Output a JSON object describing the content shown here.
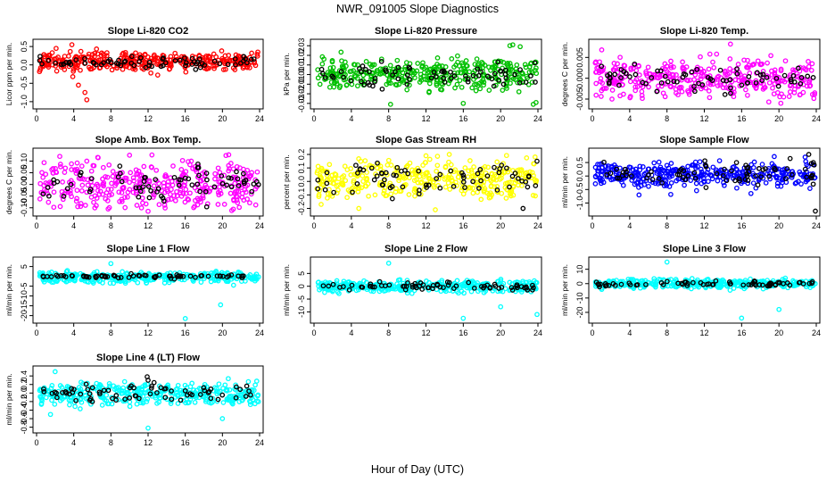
{
  "figure": {
    "title": "NWR_091005  Slope Diagnostics",
    "xlabel": "Hour of Day (UTC)"
  },
  "chart_data": [
    {
      "type": "scatter",
      "title": "Slope Li-820 CO2",
      "ylabel": "Licor ppm per min.",
      "xlim": [
        0,
        24
      ],
      "ylim": [
        -1.1,
        0.6
      ],
      "xticks": [
        0,
        4,
        8,
        12,
        16,
        20,
        24
      ],
      "yticks": [
        -1.0,
        -0.5,
        0.0,
        0.5
      ],
      "ytick_labels": [
        "-1.0",
        "-0.5",
        "0.0",
        "0.5"
      ],
      "grid": false,
      "series": [
        {
          "color": "#ff0000",
          "center": 0.08,
          "spread": 0.12,
          "points": [
            [
              3.9,
              -0.32
            ],
            [
              4.5,
              -0.55
            ],
            [
              5.2,
              -0.75
            ],
            [
              5.4,
              -0.95
            ],
            [
              2.1,
              0.45
            ],
            [
              3.8,
              0.55
            ],
            [
              12.3,
              -0.22
            ]
          ]
        },
        {
          "color": "#000000",
          "center": 0.08,
          "spread": 0.08,
          "points": []
        }
      ]
    },
    {
      "type": "scatter",
      "title": "Slope Li-820 Pressure",
      "ylabel": "kPa per min.",
      "xlim": [
        0,
        24
      ],
      "ylim": [
        -0.032,
        0.033
      ],
      "xticks": [
        0,
        4,
        8,
        12,
        16,
        20,
        24
      ],
      "yticks": [
        -0.03,
        -0.02,
        -0.01,
        0.0,
        0.01,
        0.02,
        0.03
      ],
      "ytick_labels": [
        "-0.03",
        "-0.02",
        "-0.01",
        "0.00",
        "0.01",
        "0.02",
        "0.03"
      ],
      "grid": false,
      "series": [
        {
          "color": "#00c000",
          "center": 0.0,
          "spread": 0.008,
          "points": [
            [
              21.0,
              0.03
            ],
            [
              21.3,
              0.031
            ],
            [
              22.1,
              0.029
            ],
            [
              8.2,
              -0.031
            ],
            [
              16.0,
              -0.03
            ],
            [
              23.8,
              -0.029
            ],
            [
              23.5,
              -0.031
            ]
          ]
        },
        {
          "color": "#000000",
          "center": 0.0,
          "spread": 0.006,
          "points": []
        }
      ]
    },
    {
      "type": "scatter",
      "title": "Slope Li-820 Temp.",
      "ylabel": "degrees C per min.",
      "xlim": [
        0,
        24
      ],
      "ylim": [
        -0.0065,
        0.0085
      ],
      "xticks": [
        0,
        4,
        8,
        12,
        16,
        20,
        24
      ],
      "yticks": [
        -0.005,
        0.0,
        0.005
      ],
      "ytick_labels": [
        "-0.005",
        "0.000",
        "0.005"
      ],
      "grid": false,
      "series": [
        {
          "color": "#ff00ff",
          "center": 0.0,
          "spread": 0.0022,
          "points": [
            [
              1.0,
              0.0068
            ],
            [
              14.8,
              0.0082
            ],
            [
              12.6,
              0.0058
            ],
            [
              20.2,
              -0.006
            ],
            [
              2.1,
              -0.005
            ]
          ]
        },
        {
          "color": "#000000",
          "center": 0.0,
          "spread": 0.0015,
          "points": []
        }
      ]
    },
    {
      "type": "scatter",
      "title": "Slope Amb. Box Temp.",
      "ylabel": "degrees C per min.",
      "xlim": [
        0,
        24
      ],
      "ylim": [
        -0.12,
        0.14
      ],
      "xticks": [
        0,
        4,
        8,
        12,
        16,
        20,
        24
      ],
      "yticks": [
        -0.1,
        -0.05,
        0.0,
        0.05,
        0.1
      ],
      "ytick_labels": [
        "-0.10",
        "-0.05",
        "0.00",
        "0.05",
        "0.10"
      ],
      "grid": false,
      "series": [
        {
          "color": "#ff00ff",
          "center": 0.0,
          "spread": 0.05,
          "points": [
            [
              12.0,
              -0.115
            ],
            [
              21.0,
              -0.112
            ],
            [
              2.5,
              0.12
            ],
            [
              10.0,
              0.125
            ]
          ]
        },
        {
          "color": "#000000",
          "center": 0.0,
          "spread": 0.04,
          "points": []
        }
      ]
    },
    {
      "type": "scatter",
      "title": "Slope Gas Stream RH",
      "ylabel": "percent per min.",
      "xlim": [
        0,
        24
      ],
      "ylim": [
        -0.23,
        0.22
      ],
      "xticks": [
        0,
        4,
        8,
        12,
        16,
        20,
        24
      ],
      "yticks": [
        -0.2,
        -0.1,
        0.0,
        0.1,
        0.2
      ],
      "ytick_labels": [
        "-0.2",
        "-0.1",
        "0.0",
        "0.1",
        "0.2"
      ],
      "grid": false,
      "series": [
        {
          "color": "#ffff00",
          "center": 0.02,
          "spread": 0.07,
          "points": [
            [
              12.0,
              0.19
            ],
            [
              14.5,
              0.2
            ],
            [
              4.8,
              -0.2
            ],
            [
              13.0,
              -0.21
            ]
          ]
        },
        {
          "color": "#000000",
          "center": 0.02,
          "spread": 0.06,
          "points": [
            [
              22.4,
              -0.2
            ],
            [
              23.9,
              0.15
            ],
            [
              20.1,
              0.12
            ]
          ]
        }
      ]
    },
    {
      "type": "scatter",
      "title": "Slope Sample Flow",
      "ylabel": "ml/min per min.",
      "xlim": [
        0,
        24
      ],
      "ylim": [
        -1.35,
        0.9
      ],
      "xticks": [
        0,
        4,
        8,
        12,
        16,
        20,
        24
      ],
      "yticks": [
        -1.0,
        -0.5,
        0.0,
        0.5
      ],
      "ytick_labels": [
        "-1.0",
        "-0.5",
        "0.0",
        "0.5"
      ],
      "grid": false,
      "series": [
        {
          "color": "#0000ff",
          "center": 0.05,
          "spread": 0.22,
          "points": [
            [
              5.0,
              -0.7
            ],
            [
              8.4,
              -0.68
            ],
            [
              17.0,
              -0.65
            ],
            [
              22.8,
              0.7
            ],
            [
              19.5,
              0.72
            ]
          ]
        },
        {
          "color": "#000000",
          "center": 0.1,
          "spread": 0.2,
          "points": [
            [
              23.9,
              -1.3
            ],
            [
              21.2,
              0.65
            ],
            [
              23.2,
              0.8
            ]
          ]
        }
      ]
    },
    {
      "type": "scatter",
      "title": "Slope Line 1 Flow",
      "ylabel": "ml/min per min.",
      "xlim": [
        0,
        24
      ],
      "ylim": [
        -22,
        8
      ],
      "xticks": [
        0,
        4,
        8,
        12,
        16,
        20,
        24
      ],
      "yticks": [
        -20,
        -15,
        -10,
        -5,
        5
      ],
      "ytick_labels": [
        "-20",
        "-15",
        "-10",
        "-5",
        "5"
      ],
      "grid": false,
      "series": [
        {
          "color": "#00ffff",
          "center": -0.5,
          "spread": 1.3,
          "points": [
            [
              8.0,
              6.5
            ],
            [
              16.0,
              -21.5
            ],
            [
              19.8,
              -14.5
            ],
            [
              21.2,
              -4.5
            ]
          ]
        },
        {
          "color": "#000000",
          "center": 0.0,
          "spread": 0.5,
          "points": []
        }
      ]
    },
    {
      "type": "scatter",
      "title": "Slope Line 2 Flow",
      "ylabel": "ml/min per min.",
      "xlim": [
        0,
        24
      ],
      "ylim": [
        -13,
        10
      ],
      "xticks": [
        0,
        4,
        8,
        12,
        16,
        20,
        24
      ],
      "yticks": [
        -10,
        -5,
        0,
        5
      ],
      "ytick_labels": [
        "-10",
        "-5",
        "0",
        "5"
      ],
      "grid": false,
      "series": [
        {
          "color": "#00ffff",
          "center": 0.0,
          "spread": 1.2,
          "points": [
            [
              8.0,
              9.0
            ],
            [
              16.0,
              -12.5
            ],
            [
              20.0,
              -8.0
            ],
            [
              23.9,
              -11.0
            ]
          ]
        },
        {
          "color": "#000000",
          "center": 0.0,
          "spread": 0.8,
          "points": []
        }
      ]
    },
    {
      "type": "scatter",
      "title": "Slope Line 3 Flow",
      "ylabel": "ml/min per min.",
      "xlim": [
        0,
        24
      ],
      "ylim": [
        -25,
        16
      ],
      "xticks": [
        0,
        4,
        8,
        12,
        16,
        20,
        24
      ],
      "yticks": [
        -20,
        -10,
        0,
        10
      ],
      "ytick_labels": [
        "-20",
        "-10",
        "0",
        "10"
      ],
      "grid": false,
      "series": [
        {
          "color": "#00ffff",
          "center": 0.0,
          "spread": 1.5,
          "points": [
            [
              8.0,
              15.0
            ],
            [
              16.0,
              -24.0
            ],
            [
              20.0,
              -18.0
            ],
            [
              1.0,
              -4.0
            ]
          ]
        },
        {
          "color": "#000000",
          "center": 0.0,
          "spread": 0.8,
          "points": []
        }
      ]
    },
    {
      "type": "scatter",
      "title": "Slope Line 4 (LT) Flow",
      "ylabel": "ml/min per min.",
      "xlim": [
        0,
        24
      ],
      "ylim": [
        -0.85,
        0.55
      ],
      "xticks": [
        0,
        4,
        8,
        12,
        16,
        20,
        24
      ],
      "yticks": [
        -0.8,
        -0.6,
        -0.4,
        -0.2,
        0.0,
        0.2,
        0.4
      ],
      "ytick_labels": [
        "-0.8",
        "-0.6",
        "-0.4",
        "-0.2",
        "0.0",
        "0.2",
        "0.4"
      ],
      "grid": false,
      "series": [
        {
          "color": "#00ffff",
          "center": -0.02,
          "spread": 0.13,
          "points": [
            [
              2.0,
              0.5
            ],
            [
              12.0,
              -0.82
            ],
            [
              20.0,
              -0.6
            ],
            [
              1.5,
              -0.5
            ]
          ]
        },
        {
          "color": "#000000",
          "center": 0.0,
          "spread": 0.1,
          "points": [
            [
              11.9,
              0.38
            ],
            [
              12.0,
              0.3
            ]
          ]
        }
      ]
    }
  ]
}
